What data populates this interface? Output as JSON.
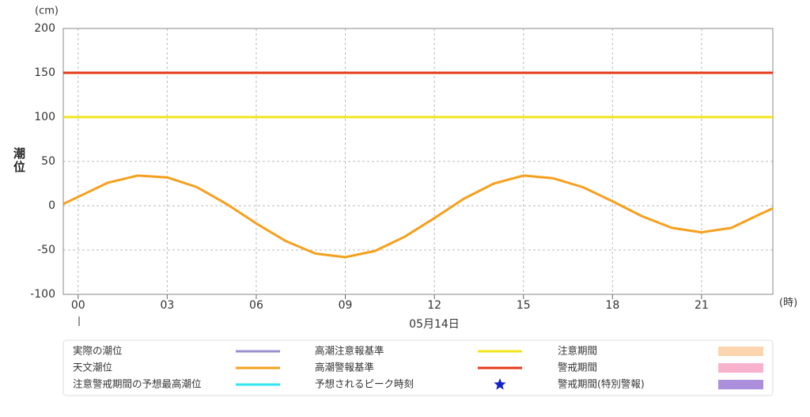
{
  "chart_data": {
    "type": "line",
    "y_unit": "(cm)",
    "y_label": "潮位",
    "x_unit": "(時)",
    "x_label": "05月14日",
    "x": [
      -0.5,
      0,
      1,
      2,
      3,
      4,
      5,
      6,
      7,
      8,
      9,
      10,
      11,
      12,
      13,
      14,
      15,
      16,
      17,
      18,
      19,
      20,
      21,
      22,
      23,
      23.4
    ],
    "xlim": [
      -0.5,
      23.4
    ],
    "xticks": [
      {
        "value": 0,
        "label": "00"
      },
      {
        "value": 3,
        "label": "03"
      },
      {
        "value": 6,
        "label": "06"
      },
      {
        "value": 9,
        "label": "09"
      },
      12,
      15,
      18,
      21
    ],
    "ylim": [
      -100,
      200
    ],
    "yticks": [
      200,
      150,
      100,
      50,
      0,
      -50,
      -100
    ],
    "grid": true,
    "series": [
      {
        "name": "天文潮位",
        "color": "#f5a01e",
        "values": [
          2,
          10,
          26,
          34,
          32,
          21,
          2,
          -20,
          -40,
          -54,
          -58,
          -51,
          -35,
          -14,
          8,
          25,
          34,
          31,
          21,
          5,
          -12,
          -25,
          -30,
          -25,
          -9,
          -3
        ]
      }
    ],
    "thresholds": [
      {
        "name": "高潮注意報基準",
        "value": 100,
        "color": "#f2e51c"
      },
      {
        "name": "高潮警報基準",
        "value": 150,
        "color": "#e43a19"
      }
    ],
    "legend_items": [
      {
        "name": "実際の潮位",
        "color": "#9b8fcf",
        "symbol": "line"
      },
      {
        "name": "注意警戒期間の予想最高潮位",
        "color": "#33e5f0",
        "symbol": "line"
      },
      {
        "name": "予想されるピーク時刻",
        "color": "#1420c8",
        "symbol": "star"
      },
      {
        "name": "注意期間",
        "color": "#fcd5ae",
        "symbol": "rect"
      },
      {
        "name": "警戒期間",
        "color": "#f9b2cc",
        "symbol": "rect"
      },
      {
        "name": "警戒期間(特別警報)",
        "color": "#ab8fdc",
        "symbol": "rect"
      }
    ]
  }
}
